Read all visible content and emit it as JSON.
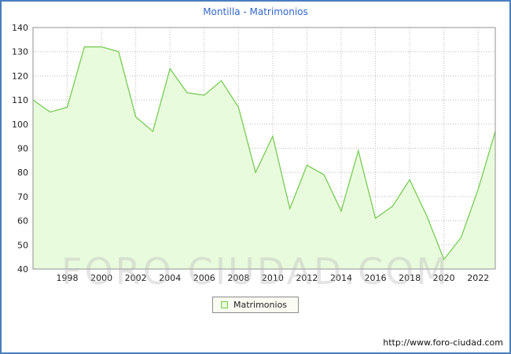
{
  "title": "Montilla - Matrimonios",
  "watermark": "FORO CIUDAD.COM",
  "legend": {
    "label": "Matrimonios"
  },
  "footer": {
    "url": "http://www.foro-ciudad.com"
  },
  "colors": {
    "frame_border": "#4a7ebf",
    "title_text": "#3366cc",
    "line": "#77cc55",
    "area_fill": "#e9fbdd",
    "grid": "#bbbbbb",
    "plot_border": "#909090",
    "tick_text": "#222222"
  },
  "chart_data": {
    "type": "area",
    "title": "Montilla - Matrimonios",
    "xlabel": "",
    "ylabel": "",
    "x": [
      1996,
      1997,
      1998,
      1999,
      2000,
      2001,
      2002,
      2003,
      2004,
      2005,
      2006,
      2007,
      2008,
      2009,
      2010,
      2011,
      2012,
      2013,
      2014,
      2015,
      2016,
      2017,
      2018,
      2019,
      2020,
      2021,
      2022,
      2023
    ],
    "values": [
      110,
      105,
      107,
      132,
      132,
      130,
      103,
      97,
      123,
      113,
      112,
      118,
      107,
      80,
      95,
      65,
      83,
      79,
      64,
      89,
      61,
      66,
      77,
      62,
      44,
      53,
      73,
      97
    ],
    "series_name": "Matrimonios",
    "ylim": [
      40,
      140
    ],
    "ytick_step": 10,
    "xtick_labels": [
      "1998",
      "2000",
      "2002",
      "2004",
      "2006",
      "2008",
      "2010",
      "2012",
      "2014",
      "2016",
      "2018",
      "2020",
      "2022"
    ],
    "x_start": 1996,
    "grid": true,
    "legend_position": "bottom"
  }
}
